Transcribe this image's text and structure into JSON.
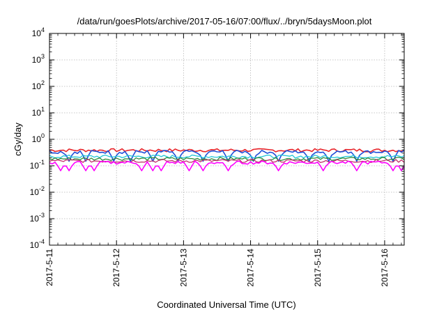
{
  "chart_data": {
    "type": "line",
    "title": "/data/run/goesPlots/archive/2017-05-16/07:00/flux/../bryn/5daysMoon.plot",
    "xlabel": "Coordinated Universal Time (UTC)",
    "ylabel": "cGy/day",
    "yscale": "log",
    "ylim": [
      0.0001,
      10000
    ],
    "y_ticks": [
      {
        "base": "10",
        "exp": "-4"
      },
      {
        "base": "10",
        "exp": "-3"
      },
      {
        "base": "10",
        "exp": "-2"
      },
      {
        "base": "10",
        "exp": "-1"
      },
      {
        "base": "10",
        "exp": "0"
      },
      {
        "base": "10",
        "exp": "1"
      },
      {
        "base": "10",
        "exp": "2"
      },
      {
        "base": "10",
        "exp": "3"
      },
      {
        "base": "10",
        "exp": "4"
      }
    ],
    "x_start": "2017-05-11 00:00",
    "x_end": "2017-05-16 07:00",
    "x_tick_labels": [
      "2017-5-11",
      "2017-5-12",
      "2017-5-13",
      "2017-5-14",
      "2017-5-15",
      "2017-5-16"
    ],
    "grid": true,
    "series": [
      {
        "color": "#e8242a",
        "base": 0.38,
        "dips": []
      },
      {
        "color": "#1f4ed8",
        "base": 0.33,
        "dips": [
          "2017-05-11 07:00",
          "2017-05-11 13:00",
          "2017-05-11 23:00",
          "2017-05-12 05:00",
          "2017-05-12 13:00",
          "2017-05-12 22:00",
          "2017-05-13 07:00",
          "2017-05-13 16:00",
          "2017-05-14 01:00",
          "2017-05-14 10:00",
          "2017-05-14 21:00",
          "2017-05-15 04:00",
          "2017-05-15 14:00",
          "2017-05-16 03:00"
        ]
      },
      {
        "color": "#22c7d6",
        "base": 0.22,
        "dips": []
      },
      {
        "color": "#2e8b3a",
        "base": 0.18,
        "dips": []
      },
      {
        "color": "#c0306a",
        "base": 0.15,
        "dips": []
      },
      {
        "color": "#ff00ff",
        "base": 0.13,
        "dips": [
          "2017-05-11 04:00",
          "2017-05-11 07:00",
          "2017-05-11 13:00",
          "2017-05-11 16:00",
          "2017-05-12 09:00",
          "2017-05-12 13:00",
          "2017-05-12 16:00",
          "2017-05-13 02:00",
          "2017-05-13 07:00",
          "2017-05-13 16:00",
          "2017-05-14 10:00",
          "2017-05-15 02:00",
          "2017-05-15 14:00",
          "2017-05-16 03:00",
          "2017-05-16 06:00"
        ]
      }
    ]
  }
}
